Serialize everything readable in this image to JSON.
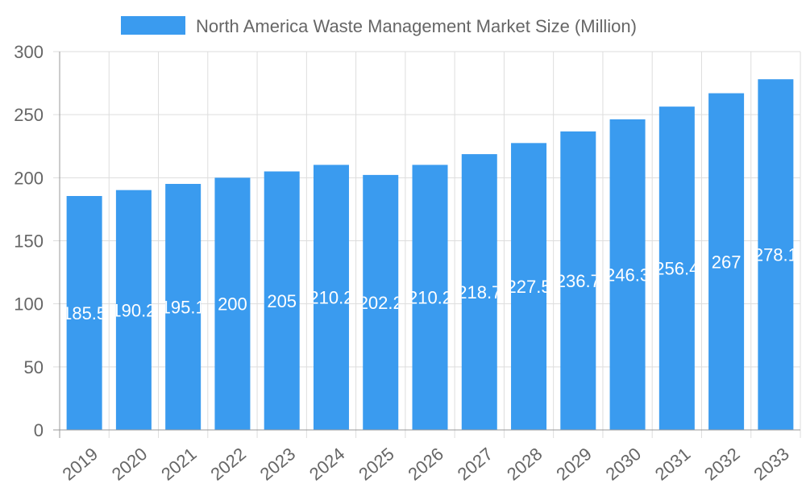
{
  "chart_data": {
    "type": "bar",
    "title": "",
    "xlabel": "",
    "ylabel": "",
    "legend": {
      "position": "top",
      "entries": [
        "North America Waste Management Market Size (Million)"
      ]
    },
    "categories": [
      "2019",
      "2020",
      "2021",
      "2022",
      "2023",
      "2024",
      "2025",
      "2026",
      "2027",
      "2028",
      "2029",
      "2030",
      "2031",
      "2032",
      "2033"
    ],
    "series": [
      {
        "name": "North America Waste Management Market Size (Million)",
        "values": [
          185.5,
          190.2,
          195.1,
          200,
          205,
          210.2,
          202.2,
          210.2,
          218.7,
          227.5,
          236.7,
          246.3,
          256.4,
          267,
          278.1
        ]
      }
    ],
    "data_labels": [
      "185.5",
      "190.2",
      "195.1",
      "200",
      "205",
      "210.2",
      "202.2",
      "210.2",
      "218.7",
      "227.5",
      "236.7",
      "246.3",
      "256.4",
      "267",
      "278.1"
    ],
    "ylim": [
      0,
      300
    ],
    "yticks": [
      "0",
      "50",
      "100",
      "150",
      "200",
      "250",
      "300"
    ],
    "grid": true,
    "colors": {
      "bar": "#3a9bef",
      "grid": "#dddddd",
      "text": "#666666",
      "label": "#ffffff"
    }
  }
}
